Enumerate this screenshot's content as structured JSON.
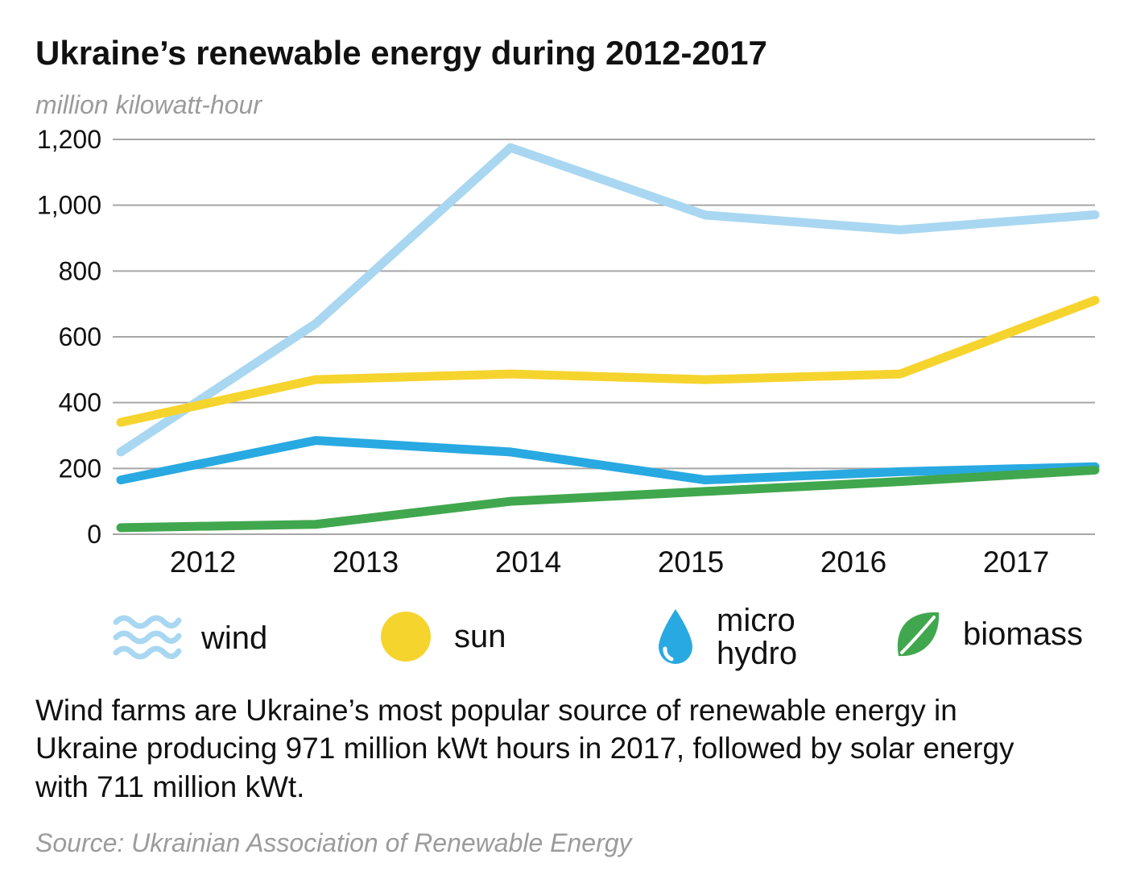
{
  "header": {
    "title": "Ukraine’s renewable energy during 2012-2017",
    "subtitle": "million kilowatt-hour"
  },
  "chart_data": {
    "type": "line",
    "categories": [
      "2012",
      "2013",
      "2014",
      "2015",
      "2016",
      "2017"
    ],
    "series": [
      {
        "name": "wind",
        "color": "#a9d7f1",
        "values": [
          250,
          640,
          1175,
          970,
          925,
          971
        ]
      },
      {
        "name": "sun",
        "color": "#f6d42e",
        "values": [
          340,
          470,
          487,
          470,
          487,
          711
        ]
      },
      {
        "name": "micro hydro",
        "color": "#29a9e1",
        "values": [
          165,
          285,
          250,
          165,
          190,
          205
        ]
      },
      {
        "name": "biomass",
        "color": "#41a74e",
        "values": [
          20,
          30,
          100,
          130,
          160,
          195
        ]
      }
    ],
    "title": "Ukraine’s renewable energy during 2012-2017",
    "xlabel": "",
    "ylabel": "million kilowatt-hour",
    "ylim": [
      0,
      1200
    ],
    "yticks": [
      "0",
      "200",
      "400",
      "600",
      "800",
      "1,000",
      "1,200"
    ],
    "grid": true,
    "legend_position": "bottom"
  },
  "legend": {
    "items": [
      {
        "label": "wind",
        "icon": "wind-waves-icon"
      },
      {
        "label": "sun",
        "icon": "sun-circle-icon"
      },
      {
        "label": "micro hydro",
        "icon": "water-drop-icon"
      },
      {
        "label": "biomass",
        "icon": "leaf-icon"
      }
    ]
  },
  "caption": "Wind farms are Ukraine’s most popular source of renewable energy in Ukraine producing 971 million kWt hours in 2017, followed by solar energy with 711 million kWt.",
  "source": "Source: Ukrainian Association of Renewable Energy",
  "colors": {
    "wind": "#a9d7f1",
    "sun": "#f6d42e",
    "micro_hydro": "#29a9e1",
    "biomass": "#41a74e",
    "gridline": "#a6a6a6",
    "muted_text": "#9b9b9b"
  }
}
